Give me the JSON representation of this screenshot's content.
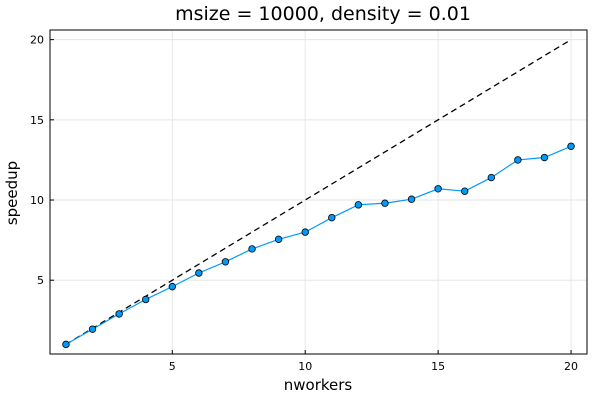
{
  "chart_data": {
    "type": "line",
    "title": "msize = 10000, density = 0.01",
    "xlabel": "nworkers",
    "ylabel": "speedup",
    "xlim": [
      0.4,
      20.6
    ],
    "ylim": [
      0.4,
      20.6
    ],
    "xticks": [
      5,
      10,
      15,
      20
    ],
    "yticks": [
      5,
      10,
      15,
      20
    ],
    "xtick_labels": [
      "5",
      "10",
      "15",
      "20"
    ],
    "ytick_labels": [
      "5",
      "10",
      "15",
      "20"
    ],
    "grid": true,
    "legend": "none",
    "series": [
      {
        "style": "line-with-markers",
        "color": "#009AFA",
        "x": [
          1,
          2,
          3,
          4,
          5,
          6,
          7,
          8,
          9,
          10,
          11,
          12,
          13,
          14,
          15,
          16,
          17,
          18,
          19,
          20
        ],
        "y": [
          1.0,
          1.95,
          2.9,
          3.8,
          4.6,
          5.45,
          6.15,
          6.95,
          7.55,
          8.0,
          8.9,
          9.7,
          9.8,
          10.05,
          10.7,
          10.55,
          11.4,
          12.5,
          12.65,
          13.35
        ]
      },
      {
        "style": "dashed",
        "color": "#000000",
        "x": [
          1,
          20
        ],
        "y": [
          1,
          20
        ]
      }
    ]
  }
}
